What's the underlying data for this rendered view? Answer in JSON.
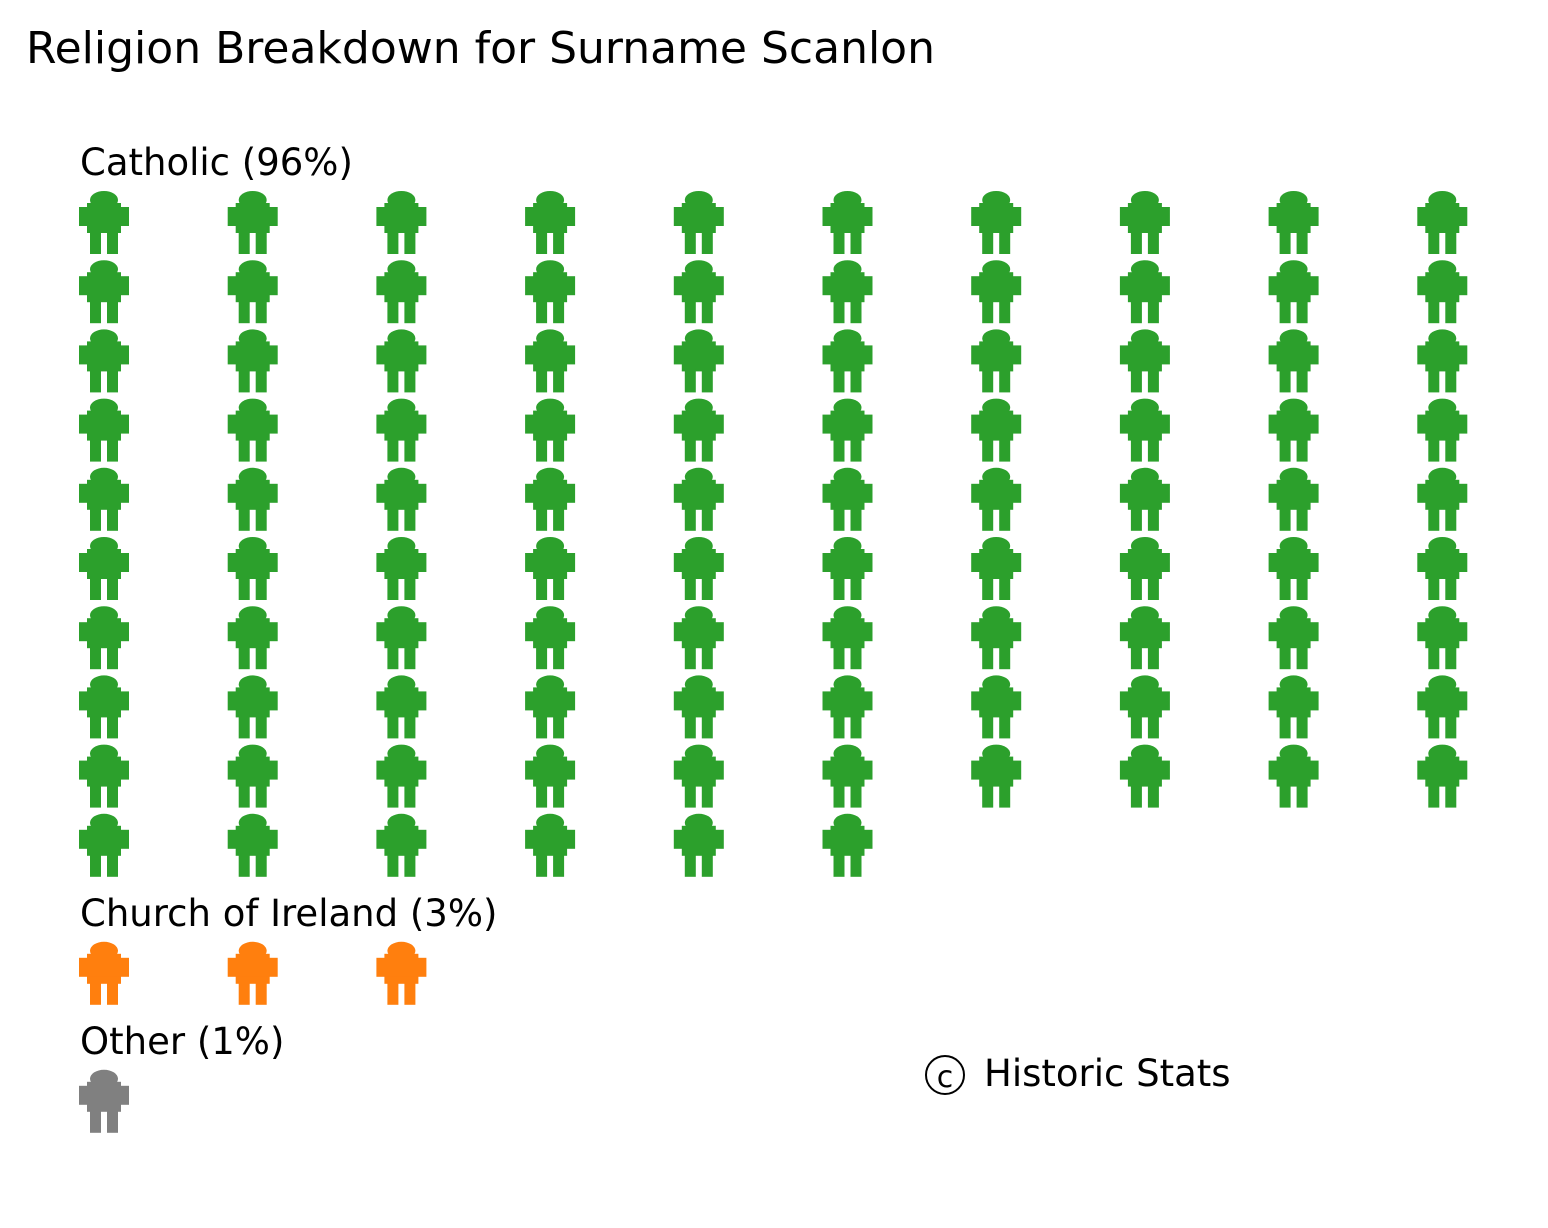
{
  "chart_data": {
    "type": "pictogram",
    "title": "Religion Breakdown for Surname Scanlon",
    "icon": "person-icon",
    "icons_per_row": 10,
    "groups": [
      {
        "label": "Catholic (96%)",
        "name": "Catholic",
        "percent": 96,
        "count": 96,
        "color": "#2ca02c"
      },
      {
        "label": "Church of Ireland (3%)",
        "name": "Church of Ireland",
        "percent": 3,
        "count": 3,
        "color": "#ff7f0e"
      },
      {
        "label": "Other (1%)",
        "name": "Other",
        "percent": 1,
        "count": 1,
        "color": "#808080"
      }
    ]
  },
  "credit": {
    "symbol": "c",
    "text": "Historic Stats"
  }
}
